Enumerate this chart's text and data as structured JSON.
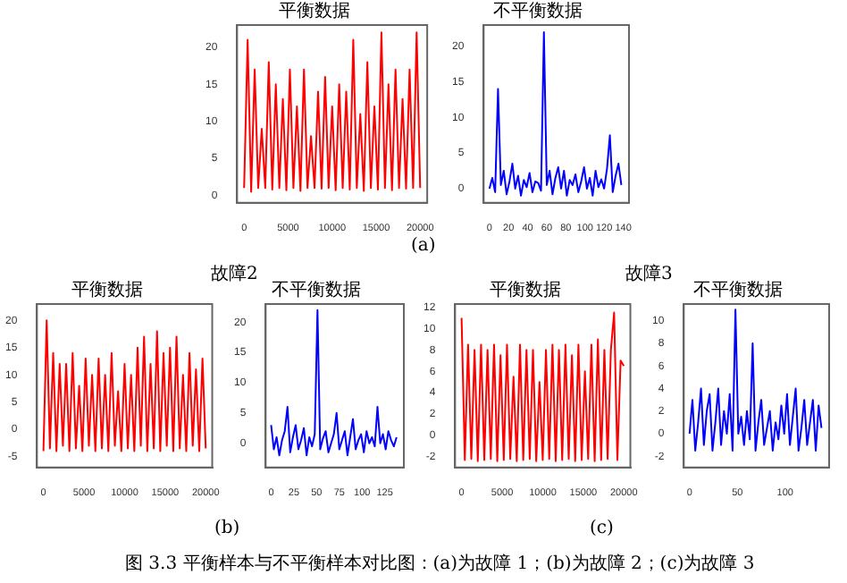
{
  "chart_data": [
    {
      "type": "line",
      "title": "平衡数据",
      "grid": false,
      "legend": false,
      "annotations": [
        "(a)"
      ],
      "x": [
        0,
        400,
        800,
        1200,
        1600,
        2000,
        2400,
        2800,
        3200,
        3600,
        4000,
        4400,
        4800,
        5200,
        5600,
        6000,
        6400,
        6800,
        7200,
        7600,
        8000,
        8400,
        8800,
        9200,
        9600,
        10000,
        10400,
        10800,
        11200,
        11600,
        12000,
        12400,
        12800,
        13200,
        13600,
        14000,
        14400,
        14800,
        15200,
        15600,
        16000,
        16400,
        16800,
        17200,
        17600,
        18000,
        18400,
        18800,
        19200,
        19600,
        20000
      ],
      "xlim": [
        -800,
        20800
      ],
      "xticks": [
        0,
        5000,
        10000,
        15000,
        20000
      ],
      "ylim": [
        -1,
        23
      ],
      "yticks": [
        0,
        5,
        10,
        15,
        20
      ],
      "series": [
        {
          "color": "#ff0000",
          "values": [
            1,
            21,
            0.5,
            17,
            1,
            9,
            1,
            18,
            0.8,
            15,
            1,
            13,
            0.7,
            17,
            1,
            12,
            0.6,
            17,
            1,
            8,
            1,
            14,
            0.9,
            16,
            1,
            12,
            0.7,
            15,
            1,
            14,
            0.8,
            21,
            1,
            11,
            0.6,
            18,
            1,
            12,
            0.8,
            22,
            1,
            15,
            0.7,
            17,
            1,
            13,
            0.9,
            17,
            1,
            22,
            1
          ]
        }
      ]
    },
    {
      "type": "line",
      "title": "不平衡数据",
      "grid": false,
      "legend": false,
      "x": [
        0,
        3,
        6,
        9,
        12,
        15,
        18,
        21,
        24,
        27,
        30,
        33,
        36,
        39,
        42,
        45,
        48,
        51,
        54,
        57,
        60,
        63,
        66,
        69,
        72,
        75,
        78,
        81,
        84,
        87,
        90,
        93,
        96,
        99,
        102,
        105,
        108,
        111,
        114,
        117,
        120,
        123,
        126,
        129,
        132,
        135,
        138
      ],
      "xlim": [
        -6,
        146
      ],
      "xticks": [
        0,
        20,
        40,
        60,
        80,
        100,
        120,
        140
      ],
      "ylim": [
        -2,
        23
      ],
      "yticks": [
        0,
        5,
        10,
        15,
        20
      ],
      "series": [
        {
          "color": "#0000ff",
          "values": [
            0,
            1.5,
            -0.5,
            14,
            0.5,
            2.5,
            -0.8,
            1,
            3.5,
            0,
            1.8,
            -1,
            1.2,
            0.2,
            2.2,
            -0.5,
            1,
            0.8,
            -0.3,
            22,
            0.5,
            2.5,
            -0.8,
            1.5,
            3,
            0,
            2.5,
            -1,
            1.2,
            0.5,
            2,
            -0.5,
            1,
            3,
            0,
            1.5,
            -1,
            2.5,
            0.2,
            1.3,
            0,
            2.8,
            7.5,
            -0.5,
            1.8,
            3.5,
            0.5
          ]
        }
      ]
    },
    {
      "type": "line",
      "title": "平衡数据",
      "grid": false,
      "legend": false,
      "annotations": [
        "(b)"
      ],
      "x": [
        0,
        400,
        800,
        1200,
        1600,
        2000,
        2400,
        2800,
        3200,
        3600,
        4000,
        4400,
        4800,
        5200,
        5600,
        6000,
        6400,
        6800,
        7200,
        7600,
        8000,
        8400,
        8800,
        9200,
        9600,
        10000,
        10400,
        10800,
        11200,
        11600,
        12000,
        12400,
        12800,
        13200,
        13600,
        14000,
        14400,
        14800,
        15200,
        15600,
        16000,
        16400,
        16800,
        17200,
        17600,
        18000,
        18400,
        18800,
        19200,
        19600,
        20000
      ],
      "xlim": [
        -800,
        20800
      ],
      "xticks": [
        0,
        5000,
        10000,
        15000,
        20000
      ],
      "ylim": [
        -7,
        23
      ],
      "yticks": [
        -5,
        0,
        5,
        10,
        15,
        20
      ],
      "series": [
        {
          "color": "#ff0000",
          "values": [
            -4,
            20,
            -3.5,
            14,
            -4,
            12,
            -3,
            12,
            -4,
            14,
            -3.5,
            8,
            -4,
            13,
            -3,
            10,
            -4,
            13,
            -3.5,
            10,
            -4,
            14,
            -3,
            7,
            -4,
            12,
            -3.5,
            10,
            -4,
            15,
            -3,
            17,
            -4,
            12,
            -3.5,
            18,
            -4,
            14,
            -3,
            15,
            -4,
            17,
            -3.5,
            10,
            -4,
            14,
            -3,
            11,
            -4,
            13,
            -3.5
          ]
        }
      ]
    },
    {
      "type": "line",
      "title": "不平衡数据",
      "grid": false,
      "legend": false,
      "annotations": [
        "故障2"
      ],
      "x": [
        0,
        3,
        6,
        9,
        12,
        15,
        18,
        21,
        24,
        27,
        30,
        33,
        36,
        39,
        42,
        45,
        48,
        51,
        54,
        57,
        60,
        63,
        66,
        69,
        72,
        75,
        78,
        81,
        84,
        87,
        90,
        93,
        96,
        99,
        102,
        105,
        108,
        111,
        114,
        117,
        120,
        123,
        126,
        129,
        132,
        135,
        138
      ],
      "xlim": [
        -6,
        146
      ],
      "xticks": [
        0,
        25,
        50,
        75,
        100,
        125
      ],
      "ylim": [
        -4,
        23
      ],
      "yticks": [
        0,
        5,
        10,
        15,
        20
      ],
      "series": [
        {
          "color": "#0000ff",
          "values": [
            3,
            -1,
            1,
            -2,
            0.5,
            2,
            6,
            -1.5,
            1,
            3,
            -1,
            0.5,
            2.5,
            -2,
            1,
            -0.5,
            1.5,
            22,
            -1,
            0.8,
            2,
            -1.5,
            0,
            1.5,
            5,
            -1,
            0.5,
            2,
            -2,
            1,
            4,
            -1,
            0.5,
            1.5,
            -1.5,
            2,
            0,
            1,
            -0.5,
            6,
            0,
            1.5,
            -1,
            2,
            0.5,
            -0.5,
            1
          ]
        }
      ]
    },
    {
      "type": "line",
      "title": "平衡数据",
      "grid": false,
      "legend": false,
      "annotations": [
        "(c)",
        "图 3.3  平衡样本与不平衡样本对比图：(a)为故障 1；(b)为故障 2；(c)为故障 3"
      ],
      "x": [
        0,
        400,
        800,
        1200,
        1600,
        2000,
        2400,
        2800,
        3200,
        3600,
        4000,
        4400,
        4800,
        5200,
        5600,
        6000,
        6400,
        6800,
        7200,
        7600,
        8000,
        8400,
        8800,
        9200,
        9600,
        10000,
        10400,
        10800,
        11200,
        11600,
        12000,
        12400,
        12800,
        13200,
        13600,
        14000,
        14400,
        14800,
        15200,
        15600,
        16000,
        16400,
        16800,
        17200,
        17600,
        18000,
        18400,
        18800,
        19200,
        19600,
        20000
      ],
      "xlim": [
        -800,
        20800
      ],
      "xticks": [
        0,
        5000,
        10000,
        15000,
        20000
      ],
      "ylim": [
        -3,
        12.3
      ],
      "yticks": [
        -2,
        0,
        2,
        4,
        6,
        8,
        10,
        12
      ],
      "series": [
        {
          "color": "#ff0000",
          "values": [
            11,
            -2.3,
            8.5,
            -2.2,
            8,
            -2.4,
            8.5,
            -2.3,
            8,
            -2.2,
            8.5,
            -2.4,
            7.5,
            -2.3,
            8.5,
            -2.2,
            5.5,
            -2.4,
            8.5,
            -2.3,
            8,
            -2.2,
            8,
            -2.4,
            5,
            -2.3,
            8,
            -2.2,
            8.5,
            -2.4,
            8,
            -2.3,
            8.5,
            -2.2,
            7.5,
            -2.4,
            8.5,
            -2.3,
            6,
            -2.2,
            8.5,
            -2.4,
            9,
            -2.3,
            8,
            -2.2,
            8,
            11.5,
            -2.3,
            7,
            6.5
          ]
        }
      ]
    },
    {
      "type": "line",
      "title": "不平衡数据",
      "grid": false,
      "legend": false,
      "annotations": [
        "故障3"
      ],
      "x": [
        0,
        3,
        6,
        9,
        12,
        15,
        18,
        21,
        24,
        27,
        30,
        33,
        36,
        39,
        42,
        45,
        48,
        51,
        54,
        57,
        60,
        63,
        66,
        69,
        72,
        75,
        78,
        81,
        84,
        87,
        90,
        93,
        96,
        99,
        102,
        105,
        108,
        111,
        114,
        117,
        120,
        123,
        126,
        129,
        132,
        135,
        138
      ],
      "xlim": [
        -6,
        146
      ],
      "xticks": [
        0,
        50,
        100
      ],
      "ylim": [
        -3,
        11.5
      ],
      "yticks": [
        -2,
        0,
        2,
        4,
        6,
        8,
        10
      ],
      "series": [
        {
          "color": "#0000ff",
          "values": [
            0,
            3,
            -1.5,
            1,
            4,
            -1,
            2,
            3.5,
            -1.5,
            1,
            4,
            -1,
            2,
            0,
            3.5,
            -1.5,
            11,
            0,
            1.5,
            -1,
            2,
            -0.5,
            8,
            -1.5,
            1,
            3,
            -1,
            0.5,
            2,
            -1.5,
            1,
            -0.5,
            2.5,
            0,
            3.5,
            -1,
            1.5,
            4,
            -1.5,
            0.5,
            3,
            -1,
            1,
            3,
            -1.5,
            2.5,
            0.5
          ]
        }
      ]
    }
  ]
}
